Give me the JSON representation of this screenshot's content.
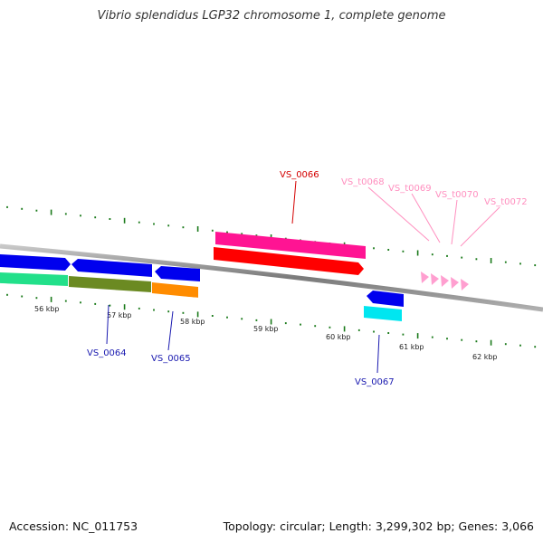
{
  "title": "Vibrio splendidus LGP32 chromosome 1, complete genome",
  "footer": {
    "accession": "Accession: NC_011753",
    "summary": "Topology: circular; Length: 3,299,302 bp; Genes: 3,066"
  },
  "colors": {
    "backbone": "#888888",
    "tick": "#1a7a1a",
    "kbp_label": "#222222",
    "gene_label_blue": "#1a1ab0",
    "gene_label_red": "#d40000",
    "trna_label": "#ff8fbf",
    "trna_arrow": "#ff9fd0"
  },
  "scale_labels": [
    "56 kbp",
    "57 kbp",
    "58 kbp",
    "59 kbp",
    "60 kbp",
    "61 kbp",
    "62 kbp"
  ],
  "gene_labels": [
    {
      "name": "VS_0064",
      "color": "#1a1ab0"
    },
    {
      "name": "VS_0065",
      "color": "#1a1ab0"
    },
    {
      "name": "VS_0066",
      "color": "#d40000"
    },
    {
      "name": "VS_0067",
      "color": "#1a1ab0"
    },
    {
      "name": "VS_t0068",
      "color": "#ff8fbf"
    },
    {
      "name": "VS_t0069",
      "color": "#ff8fbf"
    },
    {
      "name": "VS_t0070",
      "color": "#ff8fbf"
    },
    {
      "name": "VS_t0072",
      "color": "#ff8fbf"
    }
  ],
  "features": [
    {
      "id": "feature-blue-left",
      "color": "#0000ee"
    },
    {
      "id": "feature-blue-064",
      "color": "#0000ee"
    },
    {
      "id": "feature-blue-065",
      "color": "#0000ee"
    },
    {
      "id": "feature-green-left",
      "color": "#22e08a"
    },
    {
      "id": "feature-olive-064",
      "color": "#6b8a22"
    },
    {
      "id": "feature-orange-065",
      "color": "#ff8c00"
    },
    {
      "id": "feature-pink-066",
      "color": "#ff1493"
    },
    {
      "id": "feature-red-066",
      "color": "#ff0000"
    },
    {
      "id": "feature-blue-067",
      "color": "#0000ee"
    },
    {
      "id": "feature-cyan-067",
      "color": "#00e6f0"
    }
  ]
}
